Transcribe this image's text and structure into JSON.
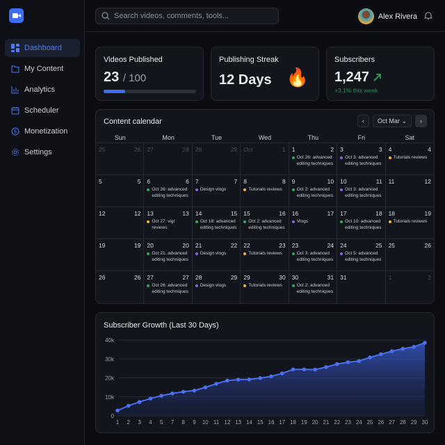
{
  "sidebar": {
    "items": [
      {
        "label": "Dashboard",
        "icon": "grid-icon",
        "active": true
      },
      {
        "label": "My Content",
        "icon": "folder-icon"
      },
      {
        "label": "Analytics",
        "icon": "bar-chart-icon"
      },
      {
        "label": "Scheduler",
        "icon": "calendar-icon"
      },
      {
        "label": "Monetization",
        "icon": "dollar-icon"
      },
      {
        "label": "Settings",
        "icon": "gear-icon"
      }
    ]
  },
  "header": {
    "search_placeholder": "Search videos, comments, tools...",
    "user_name": "Alex Rivera"
  },
  "stats": {
    "videos": {
      "title": "Videos Published",
      "value": "23",
      "total": "/ 100",
      "progress": 0.23
    },
    "streak": {
      "title": "Publishing Streak",
      "value": "12 Days"
    },
    "subs": {
      "title": "Subscribers",
      "value": "1,247",
      "change": "+3.1% this week"
    }
  },
  "calendar": {
    "title": "Content calendar",
    "range": "Oct Mar",
    "days": [
      "Sun",
      "Mon",
      "Tue",
      "Wed",
      "Thu",
      "Fri",
      "Sat"
    ],
    "colors": {
      "green": "#2fae5f",
      "purple": "#8a63e8",
      "yellow": "#f2b53a"
    },
    "cells": [
      {
        "l": "25",
        "r": "26",
        "m": true
      },
      {
        "l": "27",
        "r": "28",
        "m": true
      },
      {
        "l": "28",
        "r": "29",
        "m": true
      },
      {
        "l": "Oct",
        "r": "1",
        "m": true
      },
      {
        "l": "1",
        "r": "2",
        "e": "Oct 26: advanced editing techniques",
        "c": "green"
      },
      {
        "l": "3",
        "r": "3",
        "e": "Oct 3: advanced editing techniques",
        "c": "purple"
      },
      {
        "l": "4",
        "r": "4",
        "e": "Tutorials reviews",
        "c": "yellow"
      },
      {
        "l": "5",
        "r": "5"
      },
      {
        "l": "6",
        "r": "6",
        "e": "Oct 26: advanced editing techniques",
        "c": "green"
      },
      {
        "l": "7",
        "r": "7",
        "e": "Design vlogs",
        "c": "purple"
      },
      {
        "l": "8",
        "r": "8",
        "e": "Tutorials reviews",
        "c": "yellow"
      },
      {
        "l": "9",
        "r": "10",
        "e": "Oct 2: advanced editing techniques",
        "c": "green"
      },
      {
        "l": "10",
        "r": "11",
        "e": "Oct 3: advanced editing techniques",
        "c": "purple"
      },
      {
        "l": "11",
        "r": "12"
      },
      {
        "l": "12",
        "r": "12"
      },
      {
        "l": "13",
        "r": "13",
        "e": "Oct 27: vigr reviews",
        "c": "yellow"
      },
      {
        "l": "14",
        "r": "15",
        "e": "Oct 18: advanced editing techniques",
        "c": "green"
      },
      {
        "l": "15",
        "r": "16",
        "e": "Oct 2: advanced editing techniques",
        "c": "green"
      },
      {
        "l": "16",
        "r": "17",
        "e": "Vlogs",
        "c": "purple"
      },
      {
        "l": "17",
        "r": "18",
        "e": "Oct 10: advanced editing techniques",
        "c": "green"
      },
      {
        "l": "18",
        "r": "19",
        "e": "Tutorials reviews",
        "c": "yellow"
      },
      {
        "l": "19",
        "r": "19"
      },
      {
        "l": "20",
        "r": "20",
        "e": "Oct 21: advanced editing techniques",
        "c": "green"
      },
      {
        "l": "21",
        "r": "22",
        "e": "Design vlogs",
        "c": "purple"
      },
      {
        "l": "22",
        "r": "23",
        "e": "Tutorials reviews",
        "c": "yellow"
      },
      {
        "l": "23",
        "r": "24",
        "e": "Oct 3: advanced editing techniques",
        "c": "green"
      },
      {
        "l": "24",
        "r": "25",
        "e": "Oct 5: advanced editing techniques",
        "c": "purple"
      },
      {
        "l": "25",
        "r": "26"
      },
      {
        "l": "26",
        "r": "26"
      },
      {
        "l": "27",
        "r": "27",
        "e": "Oct 26: advanced editing techniques",
        "c": "green"
      },
      {
        "l": "28",
        "r": "29",
        "e": "Design vlogs",
        "c": "purple"
      },
      {
        "l": "29",
        "r": "30",
        "e": "Tutorials reviews",
        "c": "yellow"
      },
      {
        "l": "30",
        "r": "31",
        "e": "Oct 2: advanced editing techniques",
        "c": "green"
      },
      {
        "l": "31",
        "r": ""
      },
      {
        "l": "1",
        "r": "2",
        "m": true
      }
    ]
  },
  "chart_data": {
    "type": "area",
    "title": "Subscriber Growth (Last 30 Days)",
    "color": "#4a6ff0",
    "categories": [
      "1",
      "2",
      "3",
      "4",
      "5",
      "7",
      "8",
      "9",
      "10",
      "11",
      "12",
      "13",
      "14",
      "15",
      "16",
      "17",
      "18",
      "19",
      "20",
      "21",
      "22",
      "23",
      "24",
      "25",
      "26",
      "27",
      "28",
      "29",
      "30"
    ],
    "values": [
      2800,
      5300,
      7300,
      9100,
      10600,
      11800,
      12700,
      13300,
      15000,
      16900,
      18600,
      19100,
      19200,
      19900,
      20800,
      22400,
      24500,
      24500,
      24400,
      25700,
      27300,
      28300,
      28900,
      30800,
      32500,
      34100,
      35400,
      36400,
      38500
    ],
    "ylim": [
      0,
      40000
    ],
    "yticks": [
      {
        "v": 0,
        "label": "0"
      },
      {
        "v": 10000,
        "label": "10k"
      },
      {
        "v": 20000,
        "label": "20k"
      },
      {
        "v": 30000,
        "label": "30k"
      },
      {
        "v": 40000,
        "label": "40k"
      }
    ],
    "grid": true
  }
}
